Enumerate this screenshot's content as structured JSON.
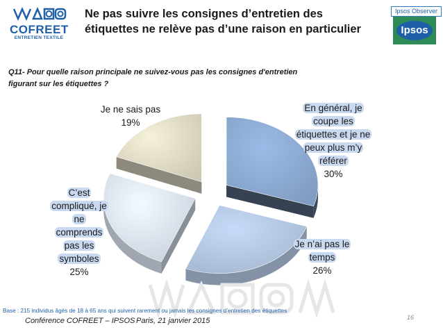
{
  "header": {
    "logo_name": "COFREET",
    "logo_sub": "ENTRETIEN TEXTILE",
    "title": "Ne pas suivre les consignes d’entretien des étiquettes ne relève pas d’une raison en particulier",
    "brand_tag": "Ipsos Observer",
    "brand_logo": "Ipsos"
  },
  "question": "Q11- Pour quelle raison principale ne suivez-vous pas les consignes d'entretien figurant sur les étiquettes ?",
  "chart_data": {
    "type": "pie",
    "style": "3d exploded",
    "slices": [
      {
        "label": "En général, je coupe les étiquettes et je ne peux plus m’y référer",
        "value": 30,
        "value_label": "30%",
        "color": "#8fadd6",
        "highlight": true
      },
      {
        "label": "Je n’ai pas le temps",
        "value": 26,
        "value_label": "26%",
        "color": "#b7cbe6",
        "highlight": true
      },
      {
        "label": "C’est compliqué, je ne comprends pas les symboles",
        "value": 25,
        "value_label": "25%",
        "color": "#dfe8f5",
        "highlight": true
      },
      {
        "label": "Je ne sais pas",
        "value": 19,
        "value_label": "19%",
        "color": "#e4dfc9",
        "highlight": false
      }
    ]
  },
  "footer": {
    "base_note": "Base : 215 individus âgés de 18 à 65 ans qui suivent rarement ou jamais les consignes d’entretien des étiquettes",
    "conference": "Conférence COFREET – IPSOS",
    "date": "Paris, 21 janvier 2015",
    "page": "16"
  },
  "colors": {
    "brand_blue": "#1e5fa8",
    "label_highlight": "#c9d9f0",
    "ipsos_green": "#2e8b57"
  }
}
